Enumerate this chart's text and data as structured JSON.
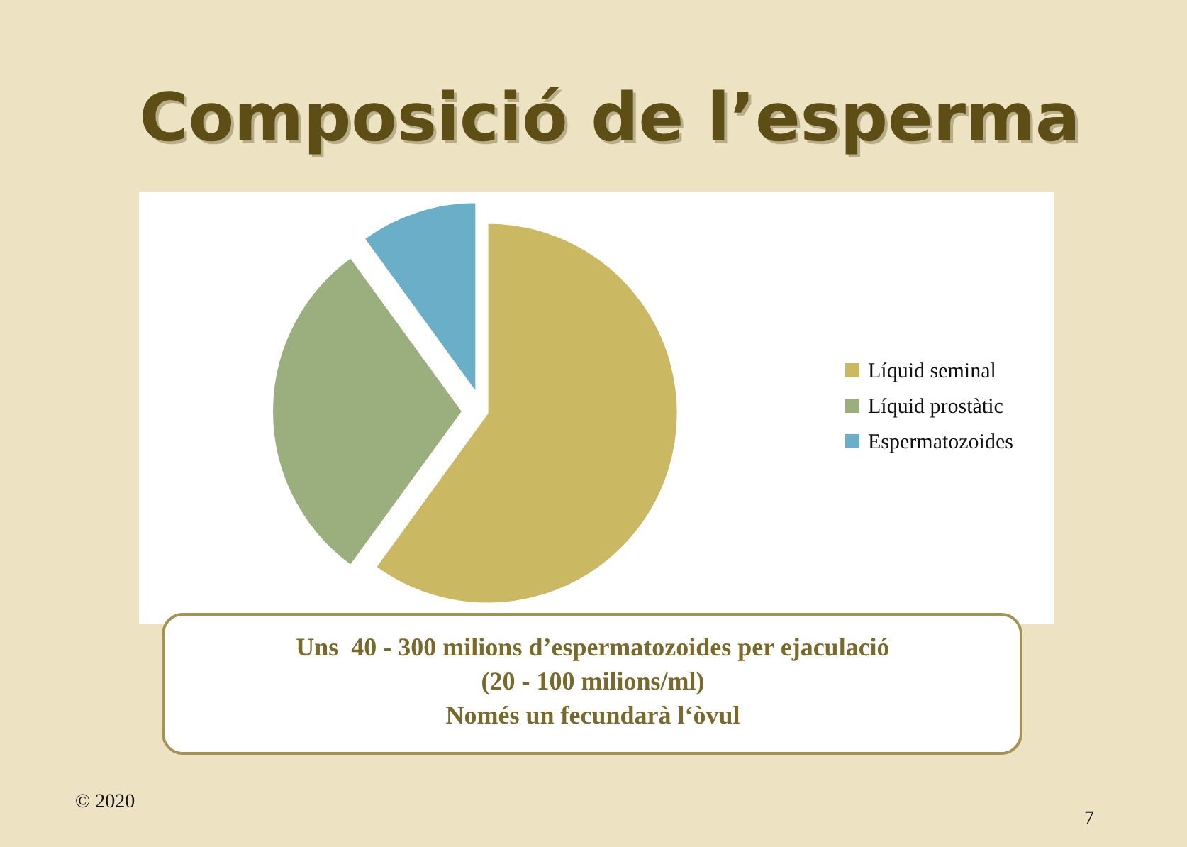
{
  "chart_data": {
    "type": "pie",
    "title": "Composició de l’esperma",
    "categories": [
      "Líquid seminal",
      "Líquid prostàtic",
      "Espermatozoides"
    ],
    "values": [
      60,
      30,
      10
    ],
    "colors": [
      "#cbb862",
      "#9bae7e",
      "#6aaec8"
    ],
    "legend": "right",
    "annotations": [
      "Uns  40 - 300 milions d’espermatozoides per ejaculació",
      "(20 - 100 milions/ml)",
      "Només un fecundarà l‘òvul",
      "© 2020",
      "7"
    ]
  }
}
